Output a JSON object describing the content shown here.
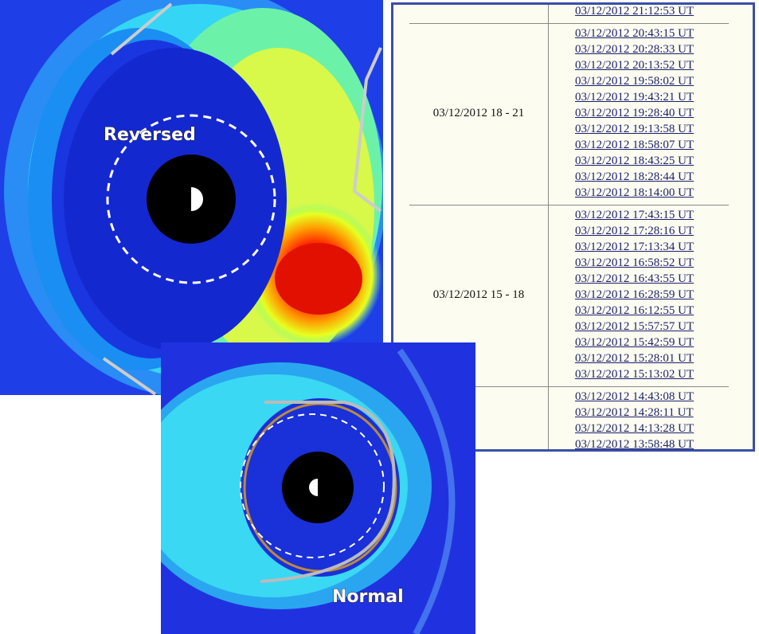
{
  "images": [
    {
      "label": "Reversed"
    },
    {
      "label": "Normal"
    }
  ],
  "table": {
    "groups": [
      {
        "links": [
          "03/12/2012 21:12:53 UT"
        ]
      },
      {
        "label": "03/12/2012 18 - 21",
        "links": [
          "03/12/2012 20:43:15 UT",
          "03/12/2012 20:28:33 UT",
          "03/12/2012 20:13:52 UT",
          "03/12/2012 19:58:02 UT",
          "03/12/2012 19:43:21 UT",
          "03/12/2012 19:28:40 UT",
          "03/12/2012 19:13:58 UT",
          "03/12/2012 18:58:07 UT",
          "03/12/2012 18:43:25 UT",
          "03/12/2012 18:28:44 UT",
          "03/12/2012 18:14:00 UT"
        ]
      },
      {
        "label": "03/12/2012 15 - 18",
        "links": [
          "03/12/2012 17:43:15 UT",
          "03/12/2012 17:28:16 UT",
          "03/12/2012 17:13:34 UT",
          "03/12/2012 16:58:52 UT",
          "03/12/2012 16:43:55 UT",
          "03/12/2012 16:28:59 UT",
          "03/12/2012 16:12:55 UT",
          "03/12/2012 15:57:57 UT",
          "03/12/2012 15:42:59 UT",
          "03/12/2012 15:28:01 UT",
          "03/12/2012 15:13:02 UT"
        ]
      },
      {
        "links": [
          "03/12/2012 14:43:08 UT",
          "03/12/2012 14:28:11 UT",
          "03/12/2012 14:13:28 UT",
          "03/12/2012 13:58:48 UT"
        ]
      }
    ]
  }
}
